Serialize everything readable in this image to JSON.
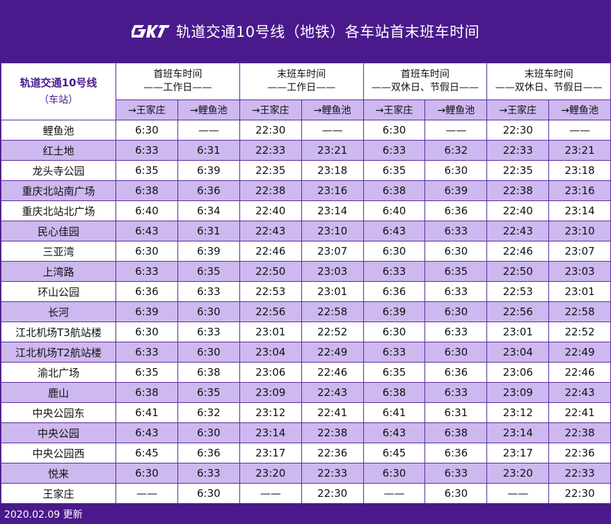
{
  "header": {
    "title": "轨道交通10号线（地铁）各车站首末班车时间",
    "logo_icon": "crt-logo-icon"
  },
  "table": {
    "station_head": {
      "line": "轨道交通10号线",
      "sub": "（车站）"
    },
    "groups": [
      {
        "title": "首班车时间",
        "subtitle": "——工作日——"
      },
      {
        "title": "末班车时间",
        "subtitle": "——工作日——"
      },
      {
        "title": "首班车时间",
        "subtitle": "——双休日、节假日——"
      },
      {
        "title": "末班车时间",
        "subtitle": "——双休日、节假日——"
      }
    ],
    "directions": [
      "→王家庄",
      "→鲤鱼池",
      "→王家庄",
      "→鲤鱼池",
      "→王家庄",
      "→鲤鱼池",
      "→王家庄",
      "→鲤鱼池"
    ],
    "rows": [
      {
        "station": "鲤鱼池",
        "times": [
          "6:30",
          "——",
          "22:30",
          "——",
          "6:30",
          "——",
          "22:30",
          "——"
        ]
      },
      {
        "station": "红土地",
        "times": [
          "6:33",
          "6:31",
          "22:33",
          "23:21",
          "6:33",
          "6:32",
          "22:33",
          "23:21"
        ]
      },
      {
        "station": "龙头寺公园",
        "times": [
          "6:35",
          "6:39",
          "22:35",
          "23:18",
          "6:35",
          "6:30",
          "22:35",
          "23:18"
        ]
      },
      {
        "station": "重庆北站南广场",
        "times": [
          "6:38",
          "6:36",
          "22:38",
          "23:16",
          "6:38",
          "6:39",
          "22:38",
          "23:16"
        ]
      },
      {
        "station": "重庆北站北广场",
        "times": [
          "6:40",
          "6:34",
          "22:40",
          "23:14",
          "6:40",
          "6:36",
          "22:40",
          "23:14"
        ]
      },
      {
        "station": "民心佳园",
        "times": [
          "6:43",
          "6:31",
          "22:43",
          "23:10",
          "6:43",
          "6:33",
          "22:43",
          "23:10"
        ]
      },
      {
        "station": "三亚湾",
        "times": [
          "6:30",
          "6:39",
          "22:46",
          "23:07",
          "6:30",
          "6:30",
          "22:46",
          "23:07"
        ]
      },
      {
        "station": "上湾路",
        "times": [
          "6:33",
          "6:35",
          "22:50",
          "23:03",
          "6:33",
          "6:35",
          "22:50",
          "23:03"
        ]
      },
      {
        "station": "环山公园",
        "times": [
          "6:36",
          "6:33",
          "22:53",
          "23:01",
          "6:36",
          "6:33",
          "22:53",
          "23:01"
        ]
      },
      {
        "station": "长河",
        "times": [
          "6:39",
          "6:30",
          "22:56",
          "22:58",
          "6:39",
          "6:30",
          "22:56",
          "22:58"
        ]
      },
      {
        "station": "江北机场T3航站楼",
        "times": [
          "6:30",
          "6:33",
          "23:01",
          "22:52",
          "6:30",
          "6:33",
          "23:01",
          "22:52"
        ]
      },
      {
        "station": "江北机场T2航站楼",
        "times": [
          "6:33",
          "6:30",
          "23:04",
          "22:49",
          "6:33",
          "6:30",
          "23:04",
          "22:49"
        ]
      },
      {
        "station": "渝北广场",
        "times": [
          "6:35",
          "6:38",
          "23:06",
          "22:46",
          "6:35",
          "6:36",
          "23:06",
          "22:46"
        ]
      },
      {
        "station": "鹿山",
        "times": [
          "6:38",
          "6:35",
          "23:09",
          "22:43",
          "6:38",
          "6:33",
          "23:09",
          "22:43"
        ]
      },
      {
        "station": "中央公园东",
        "times": [
          "6:41",
          "6:32",
          "23:12",
          "22:41",
          "6:41",
          "6:31",
          "23:12",
          "22:41"
        ]
      },
      {
        "station": "中央公园",
        "times": [
          "6:43",
          "6:30",
          "23:14",
          "22:38",
          "6:43",
          "6:38",
          "23:14",
          "22:38"
        ]
      },
      {
        "station": "中央公园西",
        "times": [
          "6:45",
          "6:36",
          "23:17",
          "22:36",
          "6:45",
          "6:36",
          "23:17",
          "22:36"
        ]
      },
      {
        "station": "悦来",
        "times": [
          "6:30",
          "6:33",
          "23:20",
          "22:33",
          "6:30",
          "6:33",
          "23:20",
          "22:33"
        ]
      },
      {
        "station": "王家庄",
        "times": [
          "——",
          "6:30",
          "——",
          "22:30",
          "——",
          "6:30",
          "——",
          "22:30"
        ]
      }
    ]
  },
  "footer": {
    "updated": "2020.02.09 更新"
  },
  "colors": {
    "brand_purple": "#4a1a8c",
    "row_highlight": "#cdb8ef"
  }
}
